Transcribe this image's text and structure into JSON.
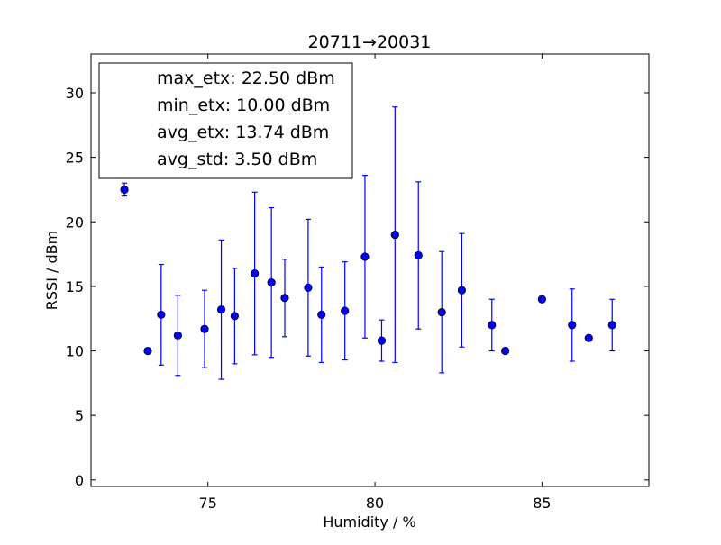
{
  "chart_data": {
    "type": "scatter",
    "title": "20711→20031",
    "xlabel": "Humidity / %",
    "ylabel": "RSSI / dBm",
    "xlim": [
      71.5,
      88.2
    ],
    "ylim": [
      -0.5,
      33
    ],
    "x_ticks": [
      75,
      80,
      85
    ],
    "y_ticks": [
      0,
      5,
      10,
      15,
      20,
      25,
      30
    ],
    "grid": false,
    "legend_position": "top-left",
    "legend_entries": [
      "max_etx: 22.50 dBm",
      "min_etx: 10.00 dBm",
      "avg_etx: 13.74 dBm",
      "avg_std: 3.50 dBm"
    ],
    "marker_color": "#0000ff",
    "errorbar_color": "#0000ff",
    "points": [
      {
        "x": 72.5,
        "y": 22.5,
        "err": 0.5
      },
      {
        "x": 73.2,
        "y": 10.0,
        "err": 0
      },
      {
        "x": 73.6,
        "y": 12.8,
        "err": 3.9
      },
      {
        "x": 74.1,
        "y": 11.2,
        "err": 3.1
      },
      {
        "x": 74.9,
        "y": 11.7,
        "err": 3.0
      },
      {
        "x": 75.4,
        "y": 13.2,
        "err": 5.4
      },
      {
        "x": 75.8,
        "y": 12.7,
        "err": 3.7
      },
      {
        "x": 76.4,
        "y": 16.0,
        "err": 6.3
      },
      {
        "x": 76.9,
        "y": 15.3,
        "err": 5.8
      },
      {
        "x": 77.3,
        "y": 14.1,
        "err": 3.0
      },
      {
        "x": 78.0,
        "y": 14.9,
        "err": 5.3
      },
      {
        "x": 78.4,
        "y": 12.8,
        "err": 3.7
      },
      {
        "x": 79.1,
        "y": 13.1,
        "err": 3.8
      },
      {
        "x": 79.7,
        "y": 17.3,
        "err": 6.3
      },
      {
        "x": 80.2,
        "y": 10.8,
        "err": 1.6
      },
      {
        "x": 80.6,
        "y": 19.0,
        "err": 9.9
      },
      {
        "x": 81.3,
        "y": 17.4,
        "err": 5.7
      },
      {
        "x": 82.0,
        "y": 13.0,
        "err": 4.7
      },
      {
        "x": 82.6,
        "y": 14.7,
        "err": 4.4
      },
      {
        "x": 83.5,
        "y": 12.0,
        "err": 2.0
      },
      {
        "x": 83.9,
        "y": 10.0,
        "err": 0
      },
      {
        "x": 85.0,
        "y": 14.0,
        "err": 0
      },
      {
        "x": 85.9,
        "y": 12.0,
        "err": 2.8
      },
      {
        "x": 86.4,
        "y": 11.0,
        "err": 0
      },
      {
        "x": 87.1,
        "y": 12.0,
        "err": 2.0
      }
    ]
  }
}
